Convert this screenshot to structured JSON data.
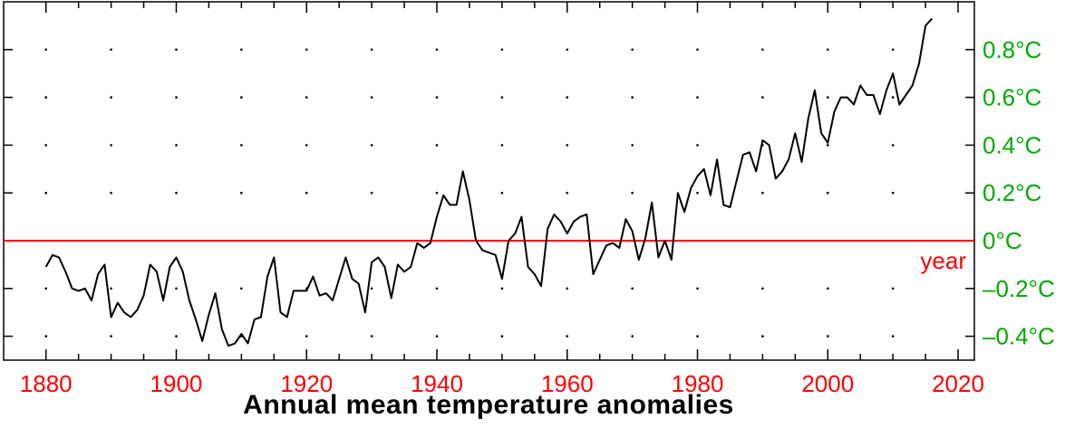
{
  "chart_data": {
    "type": "line",
    "title": "Annual mean temperature anomalies",
    "xlabel": "year",
    "ylabel": "",
    "xlim": [
      1873.5,
      2022.5
    ],
    "ylim": [
      -0.5,
      1.0
    ],
    "x_ticks": [
      1880,
      1900,
      1920,
      1940,
      1960,
      1980,
      2000,
      2020
    ],
    "x_tick_labels": [
      "1880",
      "1900",
      "1920",
      "1940",
      "1960",
      "1980",
      "2000",
      "2020"
    ],
    "y_ticks": [
      0.8,
      0.6,
      0.4,
      0.2,
      0.0,
      -0.2,
      -0.4
    ],
    "y_tick_labels": [
      "0.8°C",
      "0.6°C",
      "0.4°C",
      "0.2°C",
      "0°C",
      "–0.2°C",
      "–0.4°C"
    ],
    "y_axis_side": "right",
    "grid": "dotted",
    "reference_line": 0,
    "colors": {
      "line": "#000000",
      "zero_line": "#ff0000",
      "x_tick_labels": "#ff0000",
      "y_tick_labels": "#00aa00",
      "axes": "#000000"
    },
    "series": [
      {
        "x": [
          1880,
          1881,
          1882,
          1883,
          1884,
          1885,
          1886,
          1887,
          1888,
          1889,
          1890,
          1891,
          1892,
          1893,
          1894,
          1895,
          1896,
          1897,
          1898,
          1899,
          1900,
          1901,
          1902,
          1903,
          1904,
          1905,
          1906,
          1907,
          1908,
          1909,
          1910,
          1911,
          1912,
          1913,
          1914,
          1915,
          1916,
          1917,
          1918,
          1919,
          1920,
          1921,
          1922,
          1923,
          1924,
          1925,
          1926,
          1927,
          1928,
          1929,
          1930,
          1931,
          1932,
          1933,
          1934,
          1935,
          1936,
          1937,
          1938,
          1939,
          1940,
          1941,
          1942,
          1943,
          1944,
          1945,
          1946,
          1947,
          1948,
          1949,
          1950,
          1951,
          1952,
          1953,
          1954,
          1955,
          1956,
          1957,
          1958,
          1959,
          1960,
          1961,
          1962,
          1963,
          1964,
          1965,
          1966,
          1967,
          1968,
          1969,
          1970,
          1971,
          1972,
          1973,
          1974,
          1975,
          1976,
          1977,
          1978,
          1979,
          1980,
          1981,
          1982,
          1983,
          1984,
          1985,
          1986,
          1987,
          1988,
          1989,
          1990,
          1991,
          1992,
          1993,
          1994,
          1995,
          1996,
          1997,
          1998,
          1999,
          2000,
          2001,
          2002,
          2003,
          2004,
          2005,
          2006,
          2007,
          2008,
          2009,
          2010,
          2011,
          2012,
          2013,
          2014,
          2015,
          2016
        ],
        "values": [
          -0.11,
          -0.06,
          -0.07,
          -0.13,
          -0.2,
          -0.21,
          -0.2,
          -0.25,
          -0.14,
          -0.1,
          -0.32,
          -0.26,
          -0.3,
          -0.32,
          -0.29,
          -0.23,
          -0.1,
          -0.13,
          -0.25,
          -0.11,
          -0.07,
          -0.13,
          -0.25,
          -0.33,
          -0.42,
          -0.31,
          -0.22,
          -0.37,
          -0.44,
          -0.43,
          -0.39,
          -0.43,
          -0.33,
          -0.32,
          -0.15,
          -0.07,
          -0.3,
          -0.32,
          -0.21,
          -0.21,
          -0.21,
          -0.15,
          -0.23,
          -0.22,
          -0.25,
          -0.16,
          -0.07,
          -0.16,
          -0.18,
          -0.3,
          -0.09,
          -0.07,
          -0.11,
          -0.24,
          -0.1,
          -0.13,
          -0.11,
          -0.01,
          -0.03,
          -0.01,
          0.1,
          0.19,
          0.15,
          0.15,
          0.29,
          0.17,
          0.0,
          -0.04,
          -0.05,
          -0.06,
          -0.16,
          0.0,
          0.03,
          0.1,
          -0.11,
          -0.14,
          -0.19,
          0.05,
          0.11,
          0.08,
          0.03,
          0.08,
          0.1,
          0.11,
          -0.14,
          -0.08,
          -0.02,
          -0.01,
          -0.03,
          0.09,
          0.04,
          -0.08,
          0.01,
          0.16,
          -0.07,
          0.0,
          -0.08,
          0.2,
          0.12,
          0.22,
          0.27,
          0.3,
          0.19,
          0.34,
          0.15,
          0.14,
          0.25,
          0.36,
          0.37,
          0.29,
          0.42,
          0.4,
          0.26,
          0.29,
          0.34,
          0.45,
          0.33,
          0.51,
          0.63,
          0.45,
          0.41,
          0.54,
          0.6,
          0.6,
          0.57,
          0.65,
          0.61,
          0.61,
          0.53,
          0.63,
          0.7,
          0.57,
          0.61,
          0.65,
          0.74,
          0.9,
          0.93
        ]
      }
    ]
  }
}
